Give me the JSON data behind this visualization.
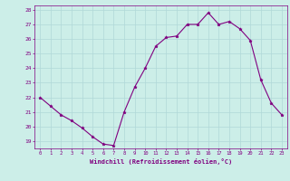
{
  "x": [
    0,
    1,
    2,
    3,
    4,
    5,
    6,
    7,
    8,
    9,
    10,
    11,
    12,
    13,
    14,
    15,
    16,
    17,
    18,
    19,
    20,
    21,
    22,
    23
  ],
  "y": [
    22.0,
    21.4,
    20.8,
    20.4,
    19.9,
    19.3,
    18.8,
    18.7,
    21.0,
    22.7,
    24.0,
    25.5,
    26.1,
    26.2,
    27.0,
    27.0,
    27.8,
    27.0,
    27.2,
    26.7,
    25.9,
    23.2,
    21.6,
    20.8
  ],
  "line_color": "#800080",
  "marker": "*",
  "marker_color": "#800080",
  "marker_size": 2.5,
  "xlabel": "Windchill (Refroidissement éolien,°C)",
  "xlabel_color": "#800080",
  "ylabel_ticks": [
    19,
    20,
    21,
    22,
    23,
    24,
    25,
    26,
    27,
    28
  ],
  "xlim": [
    -0.5,
    23.5
  ],
  "ylim": [
    18.5,
    28.3
  ],
  "grid_color": "#b0d8d8",
  "bg_color": "#cceee8",
  "tick_color": "#800080",
  "font_color": "#800080"
}
